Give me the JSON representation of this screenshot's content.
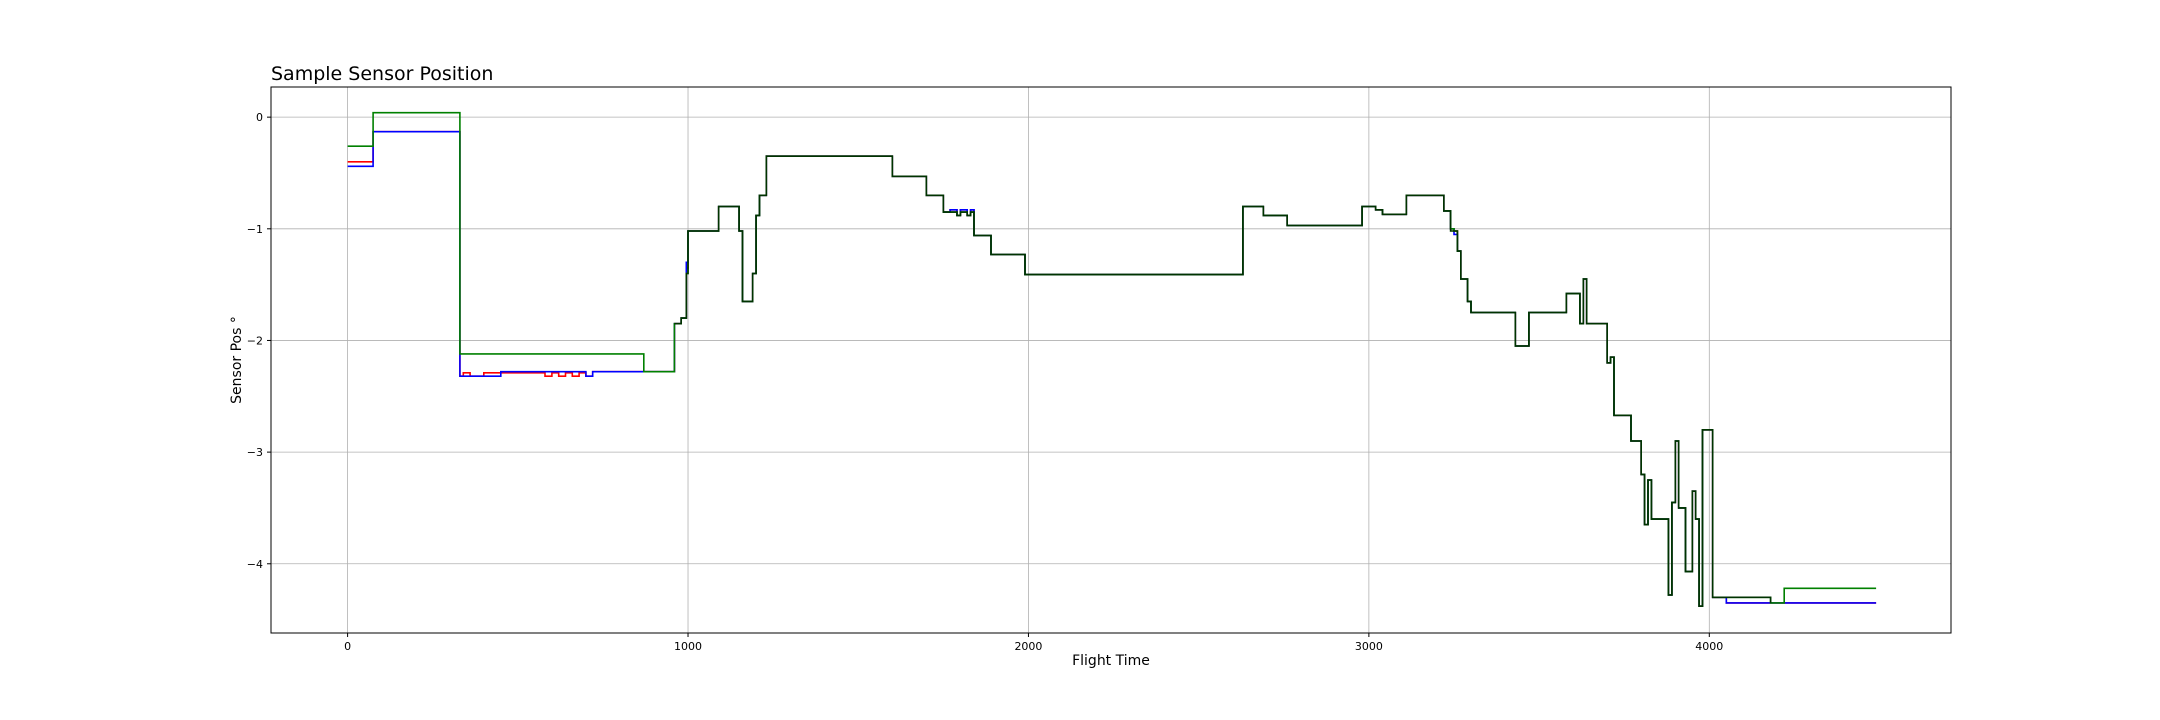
{
  "chart_data": {
    "type": "line",
    "title": "Sample Sensor Position",
    "xlabel": "Flight Time",
    "ylabel": "Sensor Pos °",
    "xlim": [
      -225,
      4710
    ],
    "ylim": [
      -4.62,
      0.27
    ],
    "xticks": [
      0,
      1000,
      2000,
      3000,
      4000
    ],
    "xtick_labels": [
      "0",
      "1000",
      "2000",
      "3000",
      "4000"
    ],
    "yticks": [
      0,
      -1,
      -2,
      -3,
      -4
    ],
    "ytick_labels": [
      "0",
      "−1",
      "−2",
      "−3",
      "−4"
    ],
    "grid": true,
    "step": true,
    "series": [
      {
        "color": "#ff0000",
        "x": [
          0,
          75,
          330,
          340,
          360,
          400,
          450,
          580,
          600,
          620,
          640,
          660,
          680,
          700,
          720,
          740,
          960,
          980,
          995,
          1000,
          1010,
          1090,
          1110,
          1150,
          1160,
          1170,
          1190,
          1200,
          1210,
          1230,
          1240,
          1600,
          1700,
          1750,
          1770,
          1790,
          1800,
          1820,
          1830,
          1840,
          1890,
          1990,
          2000,
          2630,
          2640,
          2690,
          2760,
          2780,
          2980,
          3020,
          3040,
          3110,
          3220,
          3240,
          3250,
          3260,
          3270,
          3290,
          3300,
          3430,
          3470,
          3580,
          3620,
          3630,
          3640,
          3660,
          3700,
          3710,
          3720,
          3770,
          3800,
          3810,
          3820,
          3830,
          3840,
          3880,
          3890,
          3900,
          3910,
          3920,
          3930,
          3950,
          3960,
          3970,
          3980,
          4000,
          4010,
          4020,
          4030,
          4040,
          4050,
          4130,
          4220,
          4490
        ],
        "y": [
          -0.4,
          -0.13,
          -2.32,
          -2.29,
          -2.32,
          -2.29,
          -2.29,
          -2.32,
          -2.29,
          -2.32,
          -2.29,
          -2.32,
          -2.29,
          -2.32,
          -2.28,
          -2.28,
          -1.85,
          -1.8,
          -1.35,
          -1.02,
          -1.02,
          -0.8,
          -0.8,
          -1.02,
          -1.65,
          -1.65,
          -1.4,
          -0.88,
          -0.7,
          -0.35,
          -0.35,
          -0.53,
          -0.7,
          -0.85,
          -0.83,
          -0.88,
          -0.83,
          -0.88,
          -0.83,
          -1.06,
          -1.23,
          -1.41,
          -1.41,
          -0.8,
          -0.8,
          -0.88,
          -0.97,
          -0.97,
          -0.8,
          -0.83,
          -0.87,
          -0.7,
          -0.84,
          -1.0,
          -1.02,
          -1.2,
          -1.45,
          -1.65,
          -1.75,
          -2.05,
          -1.75,
          -1.58,
          -1.85,
          -1.45,
          -1.85,
          -1.85,
          -2.2,
          -2.15,
          -2.67,
          -2.9,
          -3.2,
          -3.65,
          -3.25,
          -3.6,
          -3.6,
          -4.28,
          -3.45,
          -2.9,
          -3.5,
          -3.5,
          -4.07,
          -3.35,
          -3.6,
          -4.38,
          -2.8,
          -2.8,
          -4.3,
          -4.3,
          -4.3,
          -4.3,
          -4.35,
          -4.35,
          -4.35,
          -4.35
        ],
        "note": ""
      },
      {
        "color": "#0000ff",
        "x": [
          0,
          75,
          330,
          340,
          440,
          450,
          460,
          700,
          720,
          740,
          960,
          980,
          995,
          1000,
          1010,
          1090,
          1110,
          1150,
          1160,
          1170,
          1190,
          1200,
          1210,
          1230,
          1240,
          1600,
          1700,
          1750,
          1770,
          1790,
          1800,
          1820,
          1830,
          1840,
          1890,
          1990,
          2000,
          2630,
          2640,
          2690,
          2760,
          2780,
          2980,
          3020,
          3040,
          3110,
          3220,
          3240,
          3250,
          3260,
          3270,
          3290,
          3300,
          3430,
          3470,
          3580,
          3620,
          3630,
          3640,
          3660,
          3700,
          3710,
          3720,
          3770,
          3800,
          3810,
          3820,
          3830,
          3840,
          3880,
          3890,
          3900,
          3910,
          3920,
          3930,
          3950,
          3960,
          3970,
          3980,
          4000,
          4010,
          4020,
          4030,
          4040,
          4050,
          4130,
          4220,
          4490
        ],
        "y": [
          -0.44,
          -0.13,
          -2.32,
          -2.32,
          -2.32,
          -2.28,
          -2.28,
          -2.32,
          -2.28,
          -2.28,
          -1.85,
          -1.8,
          -1.3,
          -1.02,
          -1.02,
          -0.8,
          -0.8,
          -1.02,
          -1.65,
          -1.65,
          -1.4,
          -0.88,
          -0.7,
          -0.35,
          -0.35,
          -0.53,
          -0.7,
          -0.85,
          -0.83,
          -0.88,
          -0.83,
          -0.88,
          -0.83,
          -1.06,
          -1.23,
          -1.41,
          -1.41,
          -0.8,
          -0.8,
          -0.88,
          -0.97,
          -0.97,
          -0.8,
          -0.83,
          -0.87,
          -0.7,
          -0.84,
          -1.0,
          -1.05,
          -1.2,
          -1.45,
          -1.65,
          -1.75,
          -2.05,
          -1.75,
          -1.58,
          -1.85,
          -1.45,
          -1.85,
          -1.85,
          -2.2,
          -2.15,
          -2.67,
          -2.9,
          -3.2,
          -3.65,
          -3.25,
          -3.6,
          -3.6,
          -4.28,
          -3.45,
          -2.9,
          -3.5,
          -3.5,
          -4.07,
          -3.35,
          -3.6,
          -4.38,
          -2.8,
          -2.8,
          -4.3,
          -4.3,
          -4.3,
          -4.3,
          -4.35,
          -4.35,
          -4.35,
          -4.35
        ],
        "note": ""
      },
      {
        "color": "#008000",
        "x": [
          0,
          75,
          330,
          340,
          870,
          880,
          960,
          980,
          995,
          1000,
          1010,
          1090,
          1110,
          1150,
          1160,
          1170,
          1190,
          1200,
          1210,
          1230,
          1240,
          1600,
          1700,
          1750,
          1770,
          1790,
          1800,
          1820,
          1830,
          1840,
          1890,
          1990,
          2000,
          2630,
          2640,
          2690,
          2760,
          2780,
          2980,
          3020,
          3040,
          3110,
          3220,
          3240,
          3250,
          3260,
          3270,
          3290,
          3300,
          3430,
          3470,
          3580,
          3620,
          3630,
          3640,
          3660,
          3700,
          3710,
          3720,
          3770,
          3800,
          3810,
          3820,
          3830,
          3840,
          3880,
          3890,
          3900,
          3910,
          3920,
          3930,
          3950,
          3960,
          3970,
          3980,
          4000,
          4010,
          4020,
          4030,
          4040,
          4050,
          4130,
          4180,
          4220,
          4490
        ],
        "y": [
          -0.26,
          0.04,
          -2.12,
          -2.12,
          -2.28,
          -2.28,
          -1.85,
          -1.8,
          -1.4,
          -1.02,
          -1.02,
          -0.8,
          -0.8,
          -1.02,
          -1.65,
          -1.65,
          -1.4,
          -0.88,
          -0.7,
          -0.35,
          -0.35,
          -0.53,
          -0.7,
          -0.85,
          -0.85,
          -0.88,
          -0.85,
          -0.88,
          -0.85,
          -1.06,
          -1.23,
          -1.41,
          -1.41,
          -0.8,
          -0.8,
          -0.88,
          -0.97,
          -0.97,
          -0.8,
          -0.83,
          -0.87,
          -0.7,
          -0.84,
          -1.0,
          -1.02,
          -1.2,
          -1.45,
          -1.65,
          -1.75,
          -2.05,
          -1.75,
          -1.58,
          -1.85,
          -1.45,
          -1.85,
          -1.85,
          -2.2,
          -2.15,
          -2.67,
          -2.9,
          -3.2,
          -3.65,
          -3.25,
          -3.6,
          -3.6,
          -4.28,
          -3.45,
          -2.9,
          -3.5,
          -3.5,
          -4.07,
          -3.35,
          -3.6,
          -4.38,
          -2.8,
          -2.8,
          -4.3,
          -4.3,
          -4.3,
          -4.3,
          -4.3,
          -4.3,
          -4.35,
          -4.22,
          -4.22
        ],
        "note": ""
      },
      {
        "color": "#003300",
        "x": [
          960,
          980,
          995,
          1000,
          1010,
          1090,
          1110,
          1150,
          1160,
          1170,
          1190,
          1200,
          1210,
          1230,
          1240,
          1600,
          1700,
          1750,
          1770,
          1790,
          1800,
          1820,
          1830,
          1840,
          1890,
          1990,
          2000,
          2630,
          2640,
          2690,
          2760,
          2780,
          2980,
          3020,
          3040,
          3110,
          3220,
          3240,
          3260,
          3270,
          3290,
          3300,
          3430,
          3470,
          3580,
          3620,
          3630,
          3640,
          3660,
          3700,
          3710,
          3720,
          3770,
          3800,
          3810,
          3820,
          3830,
          3840,
          3880,
          3890,
          3900,
          3910,
          3920,
          3930,
          3950,
          3960,
          3970,
          3980,
          4000,
          4010,
          4020,
          4030,
          4040,
          4050,
          4130,
          4180
        ],
        "y": [
          -1.85,
          -1.8,
          -1.4,
          -1.02,
          -1.02,
          -0.8,
          -0.8,
          -1.02,
          -1.65,
          -1.65,
          -1.4,
          -0.88,
          -0.7,
          -0.35,
          -0.35,
          -0.53,
          -0.7,
          -0.85,
          -0.85,
          -0.88,
          -0.85,
          -0.88,
          -0.85,
          -1.06,
          -1.23,
          -1.41,
          -1.41,
          -0.8,
          -0.8,
          -0.88,
          -0.97,
          -0.97,
          -0.8,
          -0.83,
          -0.87,
          -0.7,
          -0.84,
          -1.02,
          -1.2,
          -1.45,
          -1.65,
          -1.75,
          -2.05,
          -1.75,
          -1.58,
          -1.85,
          -1.45,
          -1.85,
          -1.85,
          -2.2,
          -2.15,
          -2.67,
          -2.9,
          -3.2,
          -3.65,
          -3.25,
          -3.6,
          -3.6,
          -4.28,
          -3.45,
          -2.9,
          -3.5,
          -3.5,
          -4.07,
          -3.35,
          -3.6,
          -4.38,
          -2.8,
          -2.8,
          -4.3,
          -4.3,
          -4.3,
          -4.3,
          -4.3,
          -4.3,
          -4.35
        ],
        "note": ""
      }
    ]
  }
}
